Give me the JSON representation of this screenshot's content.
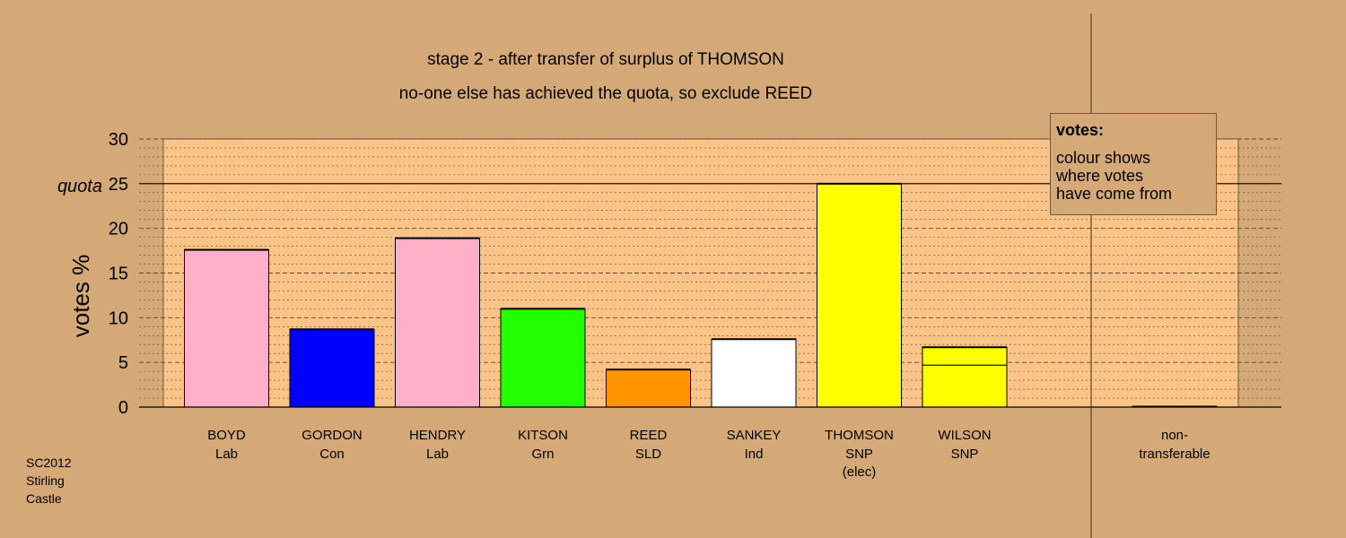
{
  "chart_data": {
    "type": "bar",
    "title": "stage 2 - after transfer of surplus of THOMSON",
    "subtitle": "no-one else has achieved the quota, so exclude REED",
    "ylabel": "votes %",
    "ylim": [
      0,
      30
    ],
    "yticks": [
      0,
      5,
      10,
      15,
      20,
      25,
      30
    ],
    "quota": {
      "label": "quota",
      "value": 25
    },
    "categories": [
      {
        "name": "BOYD",
        "party": "Lab",
        "note": ""
      },
      {
        "name": "GORDON",
        "party": "Con",
        "note": ""
      },
      {
        "name": "HENDRY",
        "party": "Lab",
        "note": ""
      },
      {
        "name": "KITSON",
        "party": "Grn",
        "note": ""
      },
      {
        "name": "REED",
        "party": "SLD",
        "note": ""
      },
      {
        "name": "SANKEY",
        "party": "Ind",
        "note": ""
      },
      {
        "name": "THOMSON",
        "party": "SNP",
        "note": "(elec)"
      },
      {
        "name": "WILSON",
        "party": "SNP",
        "note": ""
      }
    ],
    "bars": [
      {
        "segments": [
          {
            "value": 17.6,
            "color": "#ffb0c8"
          }
        ]
      },
      {
        "segments": [
          {
            "value": 8.7,
            "color": "#0000ff"
          }
        ]
      },
      {
        "segments": [
          {
            "value": 18.9,
            "color": "#ffb0c8"
          }
        ]
      },
      {
        "segments": [
          {
            "value": 11.0,
            "color": "#22ff00"
          }
        ]
      },
      {
        "segments": [
          {
            "value": 4.2,
            "color": "#ff9500"
          }
        ]
      },
      {
        "segments": [
          {
            "value": 7.6,
            "color": "#ffffff"
          }
        ]
      },
      {
        "segments": [
          {
            "value": 25.0,
            "color": "#ffff00"
          }
        ]
      },
      {
        "segments": [
          {
            "value": 4.7,
            "color": "#ffff00"
          },
          {
            "value": 2.0,
            "color": "#ffff00"
          }
        ]
      }
    ],
    "nontransferable": {
      "label_line1": "non-",
      "label_line2": "transferable",
      "value": 0.1
    },
    "grid": true,
    "colors": {
      "background": "#d4a977",
      "plot_area": "#fac388",
      "grid": "#5a4630",
      "axis": "#000000"
    }
  },
  "legend": {
    "title": "votes:",
    "line1": "colour shows",
    "line2": "where votes",
    "line3": "have come from"
  },
  "footnote": {
    "line1": "SC2012",
    "line2": "Stirling",
    "line3": "Castle"
  }
}
